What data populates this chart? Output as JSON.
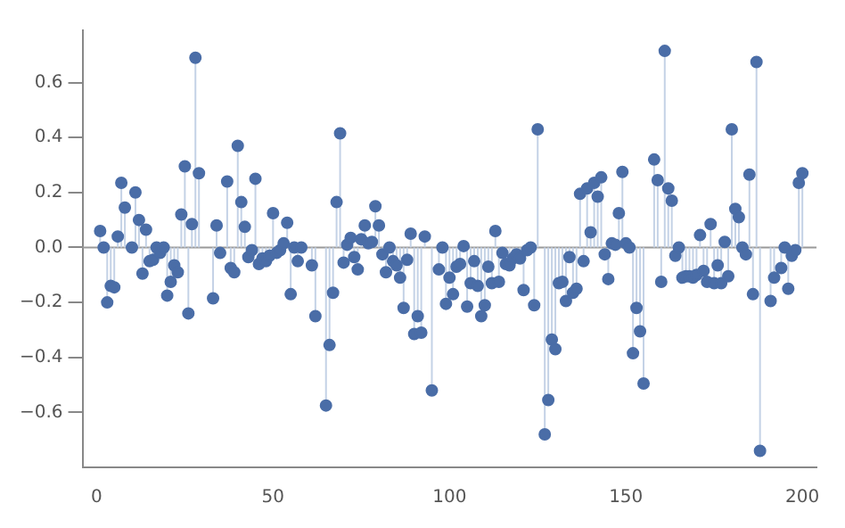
{
  "chart_data": {
    "type": "lollipop",
    "marker": "circle",
    "grid": false,
    "legend": false,
    "xlim": [
      -4,
      204
    ],
    "ylim": [
      -0.8,
      0.79
    ],
    "xticks": [
      0,
      50,
      100,
      150,
      200
    ],
    "yticks": [
      {
        "value": -0.6,
        "label": "−0.6"
      },
      {
        "value": -0.4,
        "label": "−0.4"
      },
      {
        "value": -0.2,
        "label": "−0.2"
      },
      {
        "value": 0,
        "label": "0.0"
      },
      {
        "value": 0.2,
        "label": "0.2"
      },
      {
        "value": 0.4,
        "label": "0.4"
      },
      {
        "value": 0.6,
        "label": "0.6"
      }
    ],
    "ref_lines": [
      {
        "axis": "y",
        "value": 0,
        "color": "#999999"
      }
    ],
    "series": [
      {
        "color": "#4a6da7",
        "x": [
          1,
          2,
          3,
          4,
          5,
          6,
          7,
          8,
          10,
          11,
          12,
          13,
          14,
          15,
          16,
          17,
          18,
          19,
          20,
          21,
          22,
          23,
          24,
          25,
          26,
          27,
          28,
          29,
          33,
          34,
          35,
          37,
          38,
          39,
          40,
          41,
          42,
          43,
          44,
          45,
          46,
          47,
          48,
          49,
          50,
          51,
          52,
          53,
          54,
          55,
          56,
          57,
          58,
          61,
          62,
          65,
          66,
          67,
          68,
          69,
          70,
          71,
          72,
          73,
          74,
          75,
          76,
          77,
          78,
          79,
          80,
          81,
          82,
          83,
          84,
          85,
          86,
          87,
          88,
          89,
          90,
          91,
          92,
          93,
          95,
          97,
          98,
          99,
          100,
          101,
          102,
          103,
          104,
          105,
          106,
          107,
          108,
          109,
          110,
          111,
          112,
          113,
          114,
          115,
          116,
          117,
          118,
          119,
          120,
          121,
          122,
          123,
          124,
          125,
          127,
          128,
          129,
          130,
          131,
          132,
          133,
          134,
          135,
          136,
          137,
          138,
          139,
          140,
          141,
          142,
          143,
          144,
          145,
          146,
          147,
          148,
          149,
          150,
          151,
          152,
          153,
          154,
          155,
          158,
          159,
          160,
          161,
          162,
          163,
          164,
          165,
          166,
          167,
          168,
          169,
          170,
          171,
          172,
          173,
          174,
          175,
          176,
          177,
          178,
          179,
          180,
          181,
          182,
          183,
          184,
          185,
          186,
          187,
          188,
          191,
          192,
          194,
          195,
          196,
          197,
          198,
          199,
          200
        ],
        "values": [
          0.06,
          0.0,
          -0.2,
          -0.14,
          -0.145,
          0.04,
          0.235,
          0.145,
          0.0,
          0.2,
          0.1,
          -0.095,
          0.065,
          -0.05,
          -0.045,
          0.0,
          -0.02,
          0.0,
          -0.175,
          -0.125,
          -0.065,
          -0.09,
          0.12,
          0.295,
          -0.24,
          0.085,
          0.69,
          0.27,
          -0.185,
          0.08,
          -0.02,
          0.24,
          -0.075,
          -0.09,
          0.37,
          0.165,
          0.075,
          -0.035,
          -0.01,
          0.25,
          -0.06,
          -0.04,
          -0.05,
          -0.03,
          0.125,
          -0.02,
          -0.01,
          0.015,
          0.09,
          -0.17,
          0.0,
          -0.05,
          0.0,
          -0.065,
          -0.25,
          -0.575,
          -0.355,
          -0.165,
          0.165,
          0.415,
          -0.055,
          0.01,
          0.035,
          -0.035,
          -0.08,
          0.03,
          0.08,
          0.015,
          0.02,
          0.15,
          0.08,
          -0.025,
          -0.09,
          0.0,
          -0.05,
          -0.065,
          -0.11,
          -0.22,
          -0.045,
          0.05,
          -0.315,
          -0.25,
          -0.31,
          0.04,
          -0.52,
          -0.08,
          0.0,
          -0.205,
          -0.11,
          -0.17,
          -0.07,
          -0.06,
          0.005,
          -0.215,
          -0.13,
          -0.05,
          -0.14,
          -0.25,
          -0.21,
          -0.07,
          -0.13,
          0.06,
          -0.125,
          -0.02,
          -0.06,
          -0.065,
          -0.04,
          -0.025,
          -0.04,
          -0.155,
          -0.01,
          0.0,
          -0.21,
          0.43,
          -0.68,
          -0.555,
          -0.335,
          -0.37,
          -0.13,
          -0.125,
          -0.195,
          -0.035,
          -0.165,
          -0.15,
          0.195,
          -0.05,
          0.215,
          0.055,
          0.235,
          0.185,
          0.255,
          -0.025,
          -0.115,
          0.015,
          0.01,
          0.125,
          0.275,
          0.015,
          0.0,
          -0.385,
          -0.22,
          -0.305,
          -0.495,
          0.32,
          0.245,
          -0.125,
          0.715,
          0.215,
          0.17,
          -0.03,
          0.0,
          -0.11,
          -0.105,
          -0.105,
          -0.11,
          -0.1,
          0.045,
          -0.085,
          -0.125,
          0.085,
          -0.13,
          -0.065,
          -0.13,
          0.02,
          -0.105,
          0.43,
          0.14,
          0.11,
          0.0,
          -0.025,
          0.265,
          -0.17,
          0.675,
          -0.74,
          -0.195,
          -0.11,
          -0.075,
          0.0,
          -0.15,
          -0.03,
          -0.01,
          0.235,
          0.27
        ]
      }
    ]
  }
}
